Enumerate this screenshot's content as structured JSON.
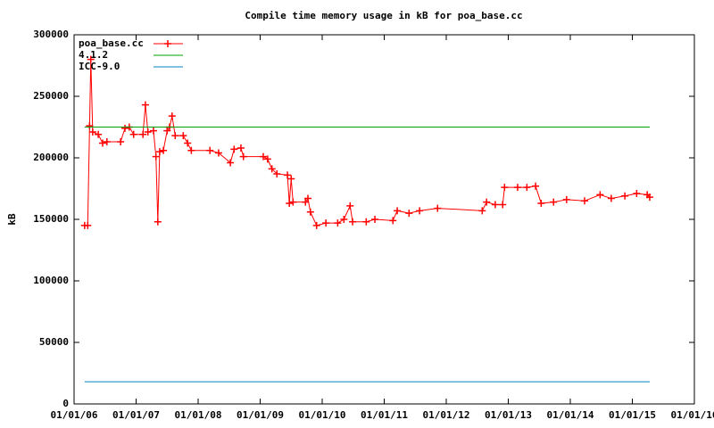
{
  "chart_data": {
    "type": "line",
    "title": "Compile time memory usage in kB for poa_base.cc",
    "ylabel": "kB",
    "xlim": [
      2006,
      2016
    ],
    "xticks": [
      {
        "value": 2006,
        "label": "01/01/06"
      },
      {
        "value": 2007,
        "label": "01/01/07"
      },
      {
        "value": 2008,
        "label": "01/01/08"
      },
      {
        "value": 2009,
        "label": "01/01/09"
      },
      {
        "value": 2010,
        "label": "01/01/10"
      },
      {
        "value": 2011,
        "label": "01/01/11"
      },
      {
        "value": 2012,
        "label": "01/01/12"
      },
      {
        "value": 2013,
        "label": "01/01/13"
      },
      {
        "value": 2014,
        "label": "01/01/14"
      },
      {
        "value": 2015,
        "label": "01/01/15"
      },
      {
        "value": 2016,
        "label": "01/01/16"
      }
    ],
    "ylim": [
      0,
      300000
    ],
    "yticks": [
      0,
      50000,
      100000,
      150000,
      200000,
      250000,
      300000
    ],
    "legend": "top-left",
    "series": [
      {
        "name": "poa_base.cc",
        "color": "#ff0000",
        "marker": "+",
        "x": [
          2006.17,
          2006.22,
          2006.25,
          2006.27,
          2006.3,
          2006.39,
          2006.46,
          2006.53,
          2006.75,
          2006.82,
          2006.89,
          2006.96,
          2007.11,
          2007.15,
          2007.19,
          2007.28,
          2007.32,
          2007.35,
          2007.38,
          2007.44,
          2007.5,
          2007.54,
          2007.58,
          2007.63,
          2007.76,
          2007.83,
          2007.89,
          2008.19,
          2008.33,
          2008.52,
          2008.58,
          2008.69,
          2008.73,
          2009.05,
          2009.12,
          2009.19,
          2009.27,
          2009.44,
          2009.47,
          2009.5,
          2009.53,
          2009.73,
          2009.77,
          2009.81,
          2009.91,
          2010.06,
          2010.25,
          2010.35,
          2010.45,
          2010.49,
          2010.71,
          2010.85,
          2011.14,
          2011.21,
          2011.4,
          2011.57,
          2011.86,
          2012.58,
          2012.65,
          2012.79,
          2012.91,
          2012.94,
          2013.15,
          2013.3,
          2013.44,
          2013.53,
          2013.73,
          2013.94,
          2014.23,
          2014.48,
          2014.66,
          2014.88,
          2015.07,
          2015.24,
          2015.28
        ],
        "values": [
          145000,
          145000,
          226000,
          280000,
          221000,
          219000,
          212000,
          213000,
          213000,
          224000,
          225000,
          219000,
          219000,
          243000,
          221000,
          222000,
          201000,
          148000,
          205000,
          206000,
          222000,
          225000,
          234000,
          218000,
          218000,
          212000,
          206000,
          206000,
          204000,
          196000,
          207000,
          208000,
          201000,
          201000,
          199000,
          191000,
          187000,
          186000,
          163000,
          183000,
          164000,
          164000,
          167000,
          156000,
          145000,
          147000,
          147000,
          150000,
          161000,
          148000,
          148000,
          150000,
          149000,
          157000,
          155000,
          157000,
          159000,
          157000,
          164000,
          162000,
          162000,
          176000,
          176000,
          176000,
          177000,
          163000,
          164000,
          166000,
          165000,
          170000,
          167000,
          169000,
          171000,
          170000,
          168000
        ]
      },
      {
        "name": "4.1.2",
        "color": "#00a000",
        "x": [
          2006.17,
          2015.28
        ],
        "values": [
          225000,
          225000
        ]
      },
      {
        "name": "ICC-9.0",
        "color": "#0080c0",
        "x": [
          2006.17,
          2015.28
        ],
        "values": [
          18000,
          18000
        ]
      }
    ]
  }
}
